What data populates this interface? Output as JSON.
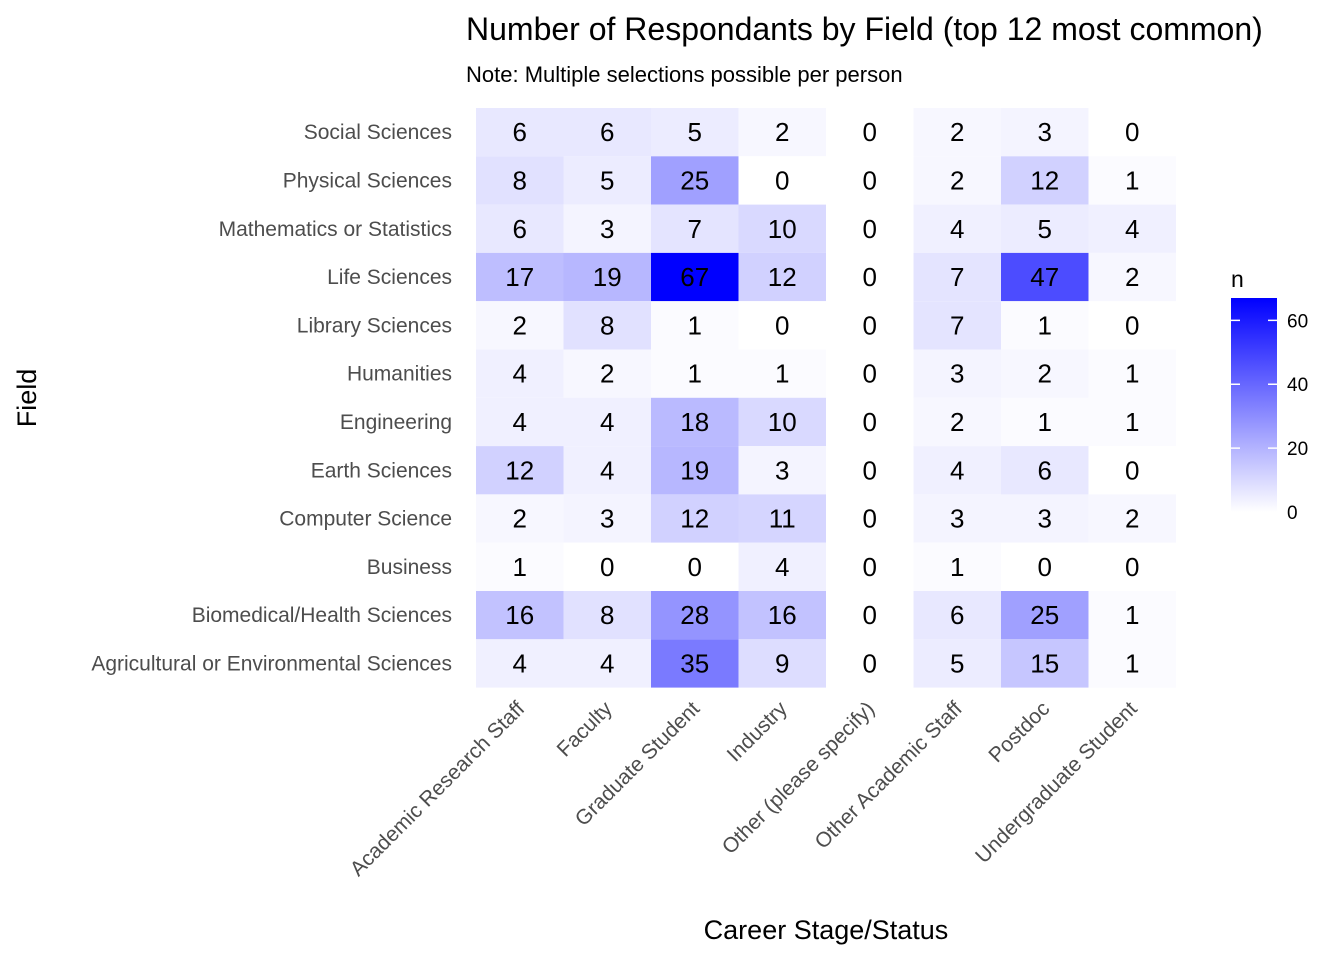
{
  "chart_data": {
    "type": "heatmap",
    "title": "Number of Respondants by Field (top 12 most common)",
    "subtitle": "Note: Multiple selections possible per person",
    "xlabel": "Career Stage/Status",
    "ylabel": "Field",
    "x_categories": [
      "Academic Research Staff",
      "Faculty",
      "Graduate Student",
      "Industry",
      "Other (please specify)",
      "Other Academic Staff",
      "Postdoc",
      "Undergraduate Student"
    ],
    "y_categories": [
      "Social Sciences",
      "Physical Sciences",
      "Mathematics or Statistics",
      "Life Sciences",
      "Library Sciences",
      "Humanities",
      "Engineering",
      "Earth Sciences",
      "Computer Science",
      "Business",
      "Biomedical/Health Sciences",
      "Agricultural or Environmental Sciences"
    ],
    "values": [
      [
        6,
        6,
        5,
        2,
        0,
        2,
        3,
        0
      ],
      [
        8,
        5,
        25,
        0,
        0,
        2,
        12,
        1
      ],
      [
        6,
        3,
        7,
        10,
        0,
        4,
        5,
        4
      ],
      [
        17,
        19,
        67,
        12,
        0,
        7,
        47,
        2
      ],
      [
        2,
        8,
        1,
        0,
        0,
        7,
        1,
        0
      ],
      [
        4,
        2,
        1,
        1,
        0,
        3,
        2,
        1
      ],
      [
        4,
        4,
        18,
        10,
        0,
        2,
        1,
        1
      ],
      [
        12,
        4,
        19,
        3,
        0,
        4,
        6,
        0
      ],
      [
        2,
        3,
        12,
        11,
        0,
        3,
        3,
        2
      ],
      [
        1,
        0,
        0,
        4,
        0,
        1,
        0,
        0
      ],
      [
        16,
        8,
        28,
        16,
        0,
        6,
        25,
        1
      ],
      [
        4,
        4,
        35,
        9,
        0,
        5,
        15,
        1
      ]
    ],
    "legend": {
      "title": "n",
      "ticks": [
        0,
        20,
        40,
        60
      ],
      "range": [
        0,
        67
      ],
      "low_color": "#ffffff",
      "high_color": "#0000ff"
    },
    "grid": false
  }
}
